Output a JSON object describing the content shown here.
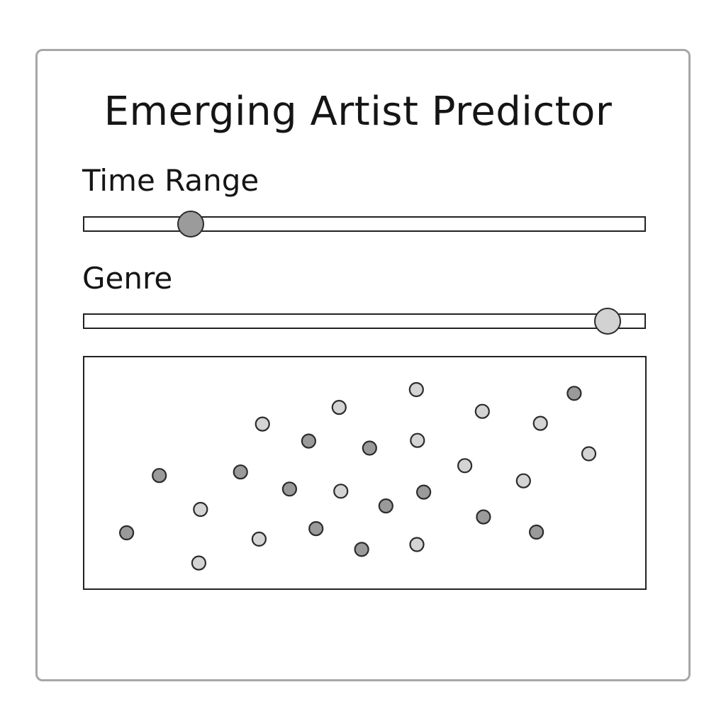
{
  "app": {
    "title": "Emerging Artist Predictor"
  },
  "controls": {
    "time_range": {
      "label": "Time Range",
      "value_fraction": 0.19
    },
    "genre": {
      "label": "Genre",
      "value_fraction": 0.935
    }
  },
  "colors": {
    "point_dark": "#9a9a9a",
    "point_light": "#d4d4d4",
    "stroke": "#2b2b2b"
  },
  "chart_data": {
    "type": "scatter",
    "title": "",
    "xlabel": "",
    "ylabel": "",
    "xlim": [
      0,
      100
    ],
    "ylim": [
      0,
      100
    ],
    "grid": false,
    "series": [
      {
        "values": [
          {
            "x": 7.5,
            "y": 25.0,
            "shade": "dark"
          },
          {
            "x": 13.3,
            "y": 49.5,
            "shade": "dark"
          },
          {
            "x": 20.6,
            "y": 35.0,
            "shade": "light"
          },
          {
            "x": 20.3,
            "y": 12.1,
            "shade": "light"
          },
          {
            "x": 27.7,
            "y": 51.0,
            "shade": "dark"
          },
          {
            "x": 31.6,
            "y": 71.5,
            "shade": "light"
          },
          {
            "x": 31.0,
            "y": 22.3,
            "shade": "light"
          },
          {
            "x": 36.4,
            "y": 43.7,
            "shade": "dark"
          },
          {
            "x": 39.8,
            "y": 64.2,
            "shade": "dark"
          },
          {
            "x": 41.1,
            "y": 26.8,
            "shade": "dark"
          },
          {
            "x": 45.2,
            "y": 78.6,
            "shade": "light"
          },
          {
            "x": 45.5,
            "y": 42.8,
            "shade": "light"
          },
          {
            "x": 50.6,
            "y": 61.2,
            "shade": "dark"
          },
          {
            "x": 49.2,
            "y": 17.9,
            "shade": "dark"
          },
          {
            "x": 53.5,
            "y": 36.5,
            "shade": "dark"
          },
          {
            "x": 58.9,
            "y": 86.2,
            "shade": "light"
          },
          {
            "x": 59.1,
            "y": 64.5,
            "shade": "light"
          },
          {
            "x": 60.2,
            "y": 42.4,
            "shade": "dark"
          },
          {
            "x": 59.0,
            "y": 20.0,
            "shade": "light"
          },
          {
            "x": 67.5,
            "y": 53.7,
            "shade": "light"
          },
          {
            "x": 70.6,
            "y": 76.9,
            "shade": "light"
          },
          {
            "x": 70.8,
            "y": 31.8,
            "shade": "dark"
          },
          {
            "x": 77.9,
            "y": 47.2,
            "shade": "light"
          },
          {
            "x": 80.9,
            "y": 71.8,
            "shade": "light"
          },
          {
            "x": 80.2,
            "y": 25.3,
            "shade": "dark"
          },
          {
            "x": 86.9,
            "y": 84.6,
            "shade": "dark"
          },
          {
            "x": 89.5,
            "y": 58.8,
            "shade": "light"
          }
        ]
      }
    ]
  }
}
